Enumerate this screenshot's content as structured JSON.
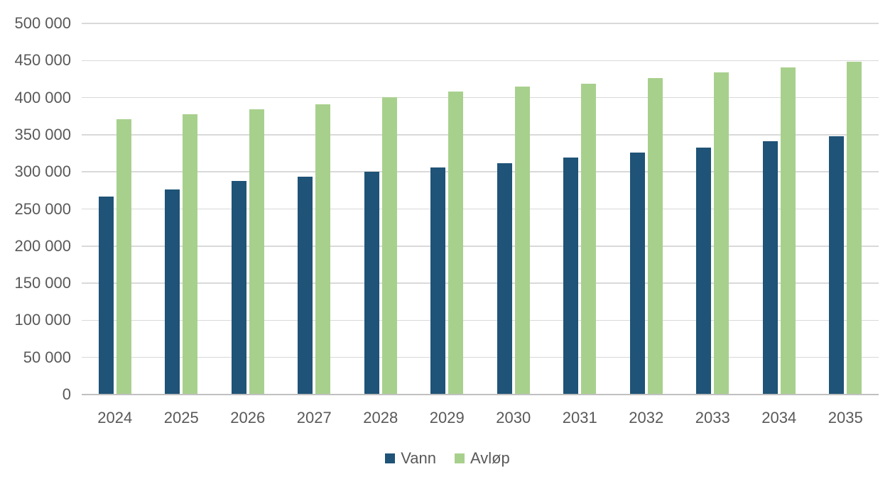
{
  "chart_data": {
    "type": "bar",
    "title": "",
    "xlabel": "",
    "ylabel": "",
    "categories": [
      "2024",
      "2025",
      "2026",
      "2027",
      "2028",
      "2029",
      "2030",
      "2031",
      "2032",
      "2033",
      "2034",
      "2035"
    ],
    "series": [
      {
        "key": "vann",
        "name": "Vann",
        "color": "#1F5377",
        "values": [
          266000,
          275000,
          287000,
          293000,
          299000,
          305000,
          311000,
          318000,
          325000,
          332000,
          340000,
          347000
        ]
      },
      {
        "key": "avlop",
        "name": "Avløp",
        "color": "#A8D08D",
        "values": [
          370000,
          377000,
          383000,
          390000,
          400000,
          407000,
          414000,
          418000,
          425000,
          433000,
          440000,
          447000
        ]
      }
    ],
    "ylim": [
      0,
      500000
    ],
    "ytick_step": 50000,
    "ytick_labels": [
      "0",
      "50 000",
      "100 000",
      "150 000",
      "200 000",
      "250 000",
      "300 000",
      "350 000",
      "400 000",
      "450 000",
      "500 000"
    ],
    "grid": true,
    "legend_position": "bottom"
  },
  "colors": {
    "vann": "#1F5377",
    "avlop": "#A8D08D",
    "gridline": "#D9D9D9",
    "axis_line": "#C0C0C0",
    "label_text": "#595959",
    "background": "#FFFFFF"
  }
}
